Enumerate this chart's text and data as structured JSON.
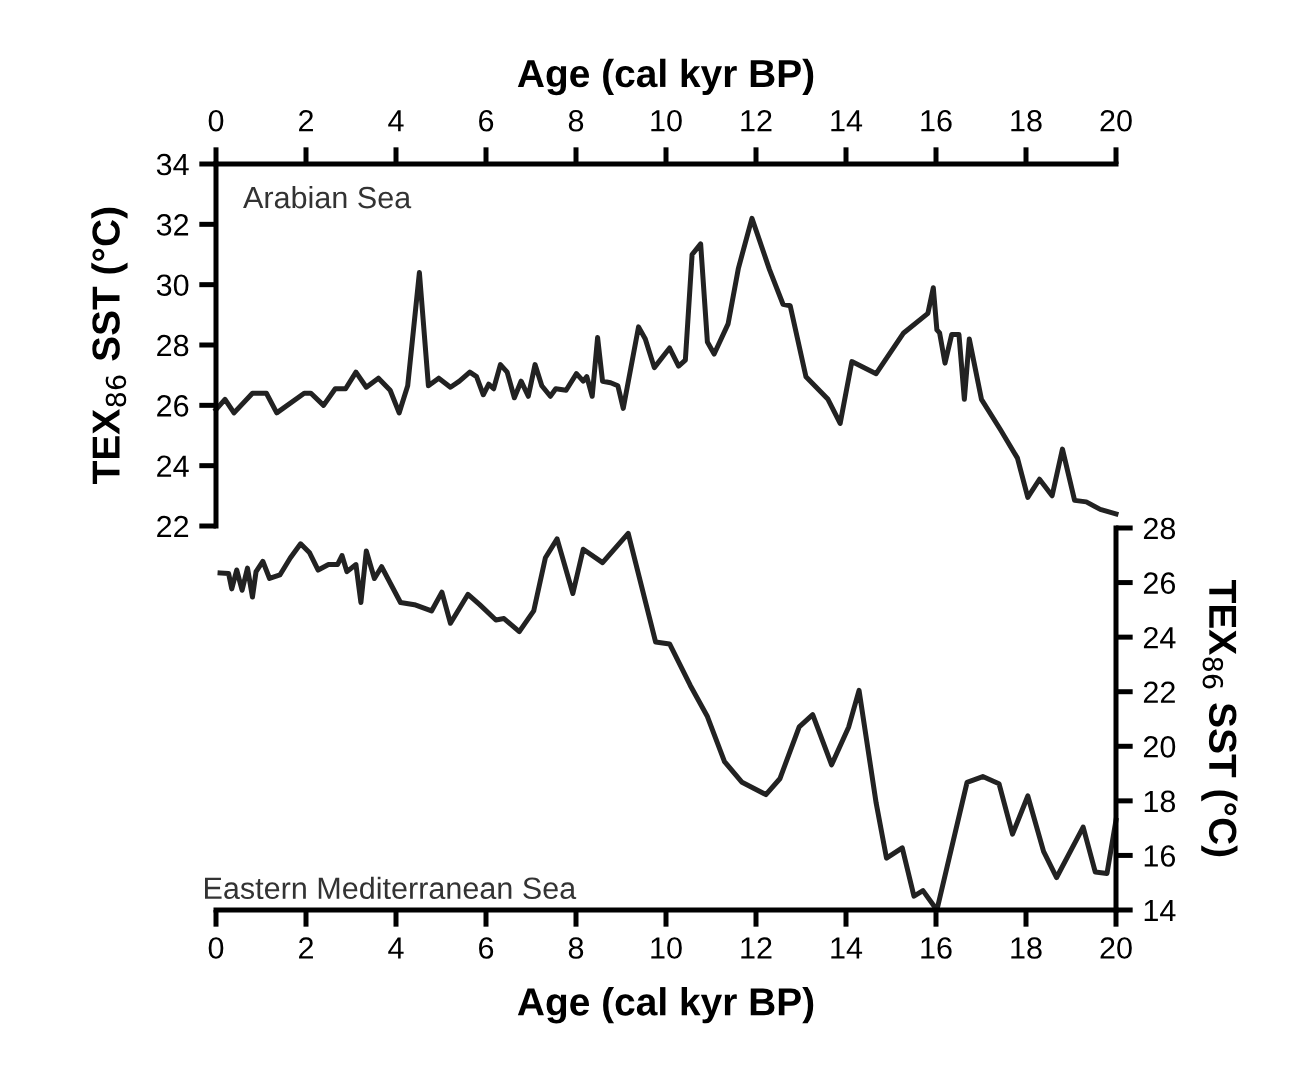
{
  "chart_data": [
    {
      "type": "line",
      "xlabel": "Age (cal kyr BP)",
      "ylabel": "TEX$_{86}$ SST (°C)",
      "xlim": [
        0,
        20
      ],
      "xticks": [
        0,
        2,
        4,
        6,
        8,
        10,
        12,
        14,
        16,
        18,
        20
      ],
      "ylim": [
        22,
        34
      ],
      "yticks": [
        22,
        24,
        26,
        28,
        30,
        32,
        34
      ],
      "annotations": [
        "Arabian Sea"
      ],
      "grid": false,
      "legend": false,
      "series": [
        {
          "color": "#222222",
          "x": [
            0,
            0.2,
            0.4,
            0.81,
            1.12,
            1.35,
            1.96,
            2.11,
            2.39,
            2.65,
            2.88,
            3.11,
            3.34,
            3.61,
            3.87,
            4.07,
            4.26,
            4.52,
            4.72,
            4.95,
            5.21,
            5.41,
            5.64,
            5.79,
            5.94,
            6.06,
            6.17,
            6.32,
            6.47,
            6.63,
            6.78,
            6.94,
            7.09,
            7.24,
            7.43,
            7.55,
            7.78,
            8.01,
            8.16,
            8.24,
            8.36,
            8.48,
            8.59,
            8.77,
            8.93,
            9.05,
            9.39,
            9.54,
            9.74,
            10.08,
            10.28,
            10.43,
            10.58,
            10.77,
            10.92,
            11.07,
            11.38,
            11.61,
            11.91,
            12.3,
            12.6,
            12.76,
            13.11,
            13.6,
            13.87,
            14.13,
            14.67,
            15.28,
            15.82,
            15.94,
            16.02,
            16.08,
            16.2,
            16.35,
            16.51,
            16.63,
            16.74,
            17.01,
            17.43,
            17.81,
            18.04,
            18.3,
            18.58,
            18.81,
            19.08,
            19.34,
            19.65,
            20.0
          ],
          "values": [
            25.86,
            26.2,
            25.75,
            26.4,
            26.4,
            25.75,
            26.4,
            26.4,
            26.0,
            26.55,
            26.55,
            27.1,
            26.6,
            26.9,
            26.5,
            25.75,
            26.65,
            30.4,
            26.65,
            26.9,
            26.6,
            26.8,
            27.1,
            26.95,
            26.35,
            26.7,
            26.55,
            27.35,
            27.1,
            26.25,
            26.8,
            26.3,
            27.35,
            26.65,
            26.3,
            26.55,
            26.5,
            27.05,
            26.8,
            26.95,
            26.3,
            28.25,
            26.8,
            26.75,
            26.65,
            25.9,
            28.6,
            28.2,
            27.25,
            27.9,
            27.3,
            27.5,
            31.0,
            31.35,
            28.1,
            27.7,
            28.7,
            30.55,
            32.2,
            30.5,
            29.35,
            29.3,
            26.95,
            26.2,
            25.4,
            27.45,
            27.05,
            28.4,
            29.05,
            29.9,
            28.5,
            28.4,
            27.4,
            28.35,
            28.35,
            26.2,
            28.2,
            26.2,
            25.2,
            24.25,
            22.95,
            23.55,
            23.0,
            24.55,
            22.85,
            22.8,
            22.55,
            22.4
          ]
        }
      ]
    },
    {
      "type": "line",
      "xlabel": "Age (cal kyr BP)",
      "ylabel": "TEX$_{86}$ SST (°C)",
      "xlim": [
        0,
        20
      ],
      "xticks": [
        0,
        2,
        4,
        6,
        8,
        10,
        12,
        14,
        16,
        18,
        20
      ],
      "ylim": [
        14,
        28
      ],
      "yticks": [
        14,
        16,
        18,
        20,
        22,
        24,
        26,
        28
      ],
      "annotations": [
        "Eastern Mediterranean Sea"
      ],
      "grid": false,
      "legend": false,
      "series": [
        {
          "color": "#222222",
          "x": [
            0.09,
            0.28,
            0.35,
            0.46,
            0.58,
            0.7,
            0.81,
            0.89,
            1.04,
            1.19,
            1.42,
            1.65,
            1.88,
            2.08,
            2.27,
            2.5,
            2.7,
            2.8,
            2.91,
            3.11,
            3.22,
            3.34,
            3.52,
            3.68,
            4.1,
            4.41,
            4.79,
            5.02,
            5.21,
            5.6,
            5.86,
            6.22,
            6.4,
            6.74,
            7.06,
            7.32,
            7.58,
            7.93,
            8.16,
            8.59,
            9.16,
            9.77,
            10.08,
            10.54,
            10.92,
            11.3,
            11.69,
            12.22,
            12.53,
            12.96,
            13.26,
            13.68,
            14.06,
            14.29,
            14.67,
            14.9,
            15.25,
            15.51,
            15.71,
            16.02,
            16.69,
            17.04,
            17.4,
            17.7,
            18.04,
            18.39,
            18.68,
            19.27,
            19.54,
            19.8,
            20.0
          ],
          "values": [
            26.35,
            26.33,
            25.77,
            26.46,
            25.72,
            26.53,
            25.47,
            26.4,
            26.78,
            26.15,
            26.28,
            26.9,
            27.42,
            27.09,
            26.46,
            26.66,
            26.66,
            26.99,
            26.4,
            26.66,
            25.27,
            27.16,
            26.15,
            26.58,
            25.27,
            25.19,
            24.96,
            25.65,
            24.51,
            25.57,
            25.19,
            24.63,
            24.68,
            24.2,
            24.96,
            26.91,
            27.6,
            25.6,
            27.22,
            26.73,
            27.8,
            23.82,
            23.75,
            22.23,
            21.09,
            19.44,
            18.68,
            18.23,
            18.81,
            20.71,
            21.16,
            19.32,
            20.71,
            22.05,
            17.92,
            15.9,
            16.28,
            14.51,
            14.71,
            14.0,
            18.68,
            18.89,
            18.63,
            16.78,
            18.18,
            16.15,
            15.19,
            17.04,
            15.39,
            15.34,
            17.29
          ]
        }
      ]
    }
  ]
}
